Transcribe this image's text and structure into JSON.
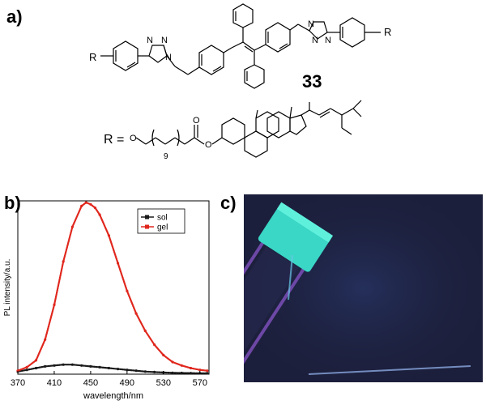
{
  "panels": {
    "a": "a)",
    "b": "b)",
    "c": "c)"
  },
  "compound": {
    "number": "33",
    "r_label": "R",
    "r_equals": "R =",
    "atoms": [
      "N",
      "N",
      "N",
      "N",
      "N",
      "N",
      "O",
      "O",
      "O"
    ],
    "repeat_count": "9"
  },
  "chart_data": {
    "type": "line",
    "title": "",
    "xlabel": "wavelength/nm",
    "ylabel": "PL intensity/a.u.",
    "xlim": [
      370,
      580
    ],
    "ylim": [
      0,
      100
    ],
    "x_ticks": [
      370,
      410,
      450,
      490,
      530,
      570
    ],
    "legend_position": "top-right",
    "series": [
      {
        "name": "sol",
        "color": "#1a1a1a",
        "x": [
          370,
          380,
          390,
          400,
          410,
          420,
          430,
          440,
          450,
          460,
          470,
          480,
          490,
          500,
          510,
          520,
          530,
          540,
          550,
          560,
          570,
          578
        ],
        "y": [
          1.5,
          2.5,
          3.5,
          4.5,
          5,
          5.5,
          5.5,
          5,
          4.5,
          4,
          3.5,
          3,
          2.5,
          2,
          1.5,
          1.2,
          1,
          0.8,
          0.7,
          0.6,
          0.5,
          0.5
        ]
      },
      {
        "name": "gel",
        "color": "#e0261c",
        "x": [
          370,
          380,
          390,
          400,
          410,
          420,
          430,
          440,
          445,
          450,
          455,
          460,
          470,
          480,
          490,
          500,
          510,
          520,
          530,
          540,
          550,
          560,
          570,
          578
        ],
        "y": [
          2,
          4,
          8,
          20,
          40,
          65,
          85,
          97,
          99,
          98,
          96,
          92,
          80,
          64,
          48,
          35,
          25,
          17,
          11,
          7,
          5,
          3.5,
          2.5,
          2
        ]
      }
    ]
  }
}
